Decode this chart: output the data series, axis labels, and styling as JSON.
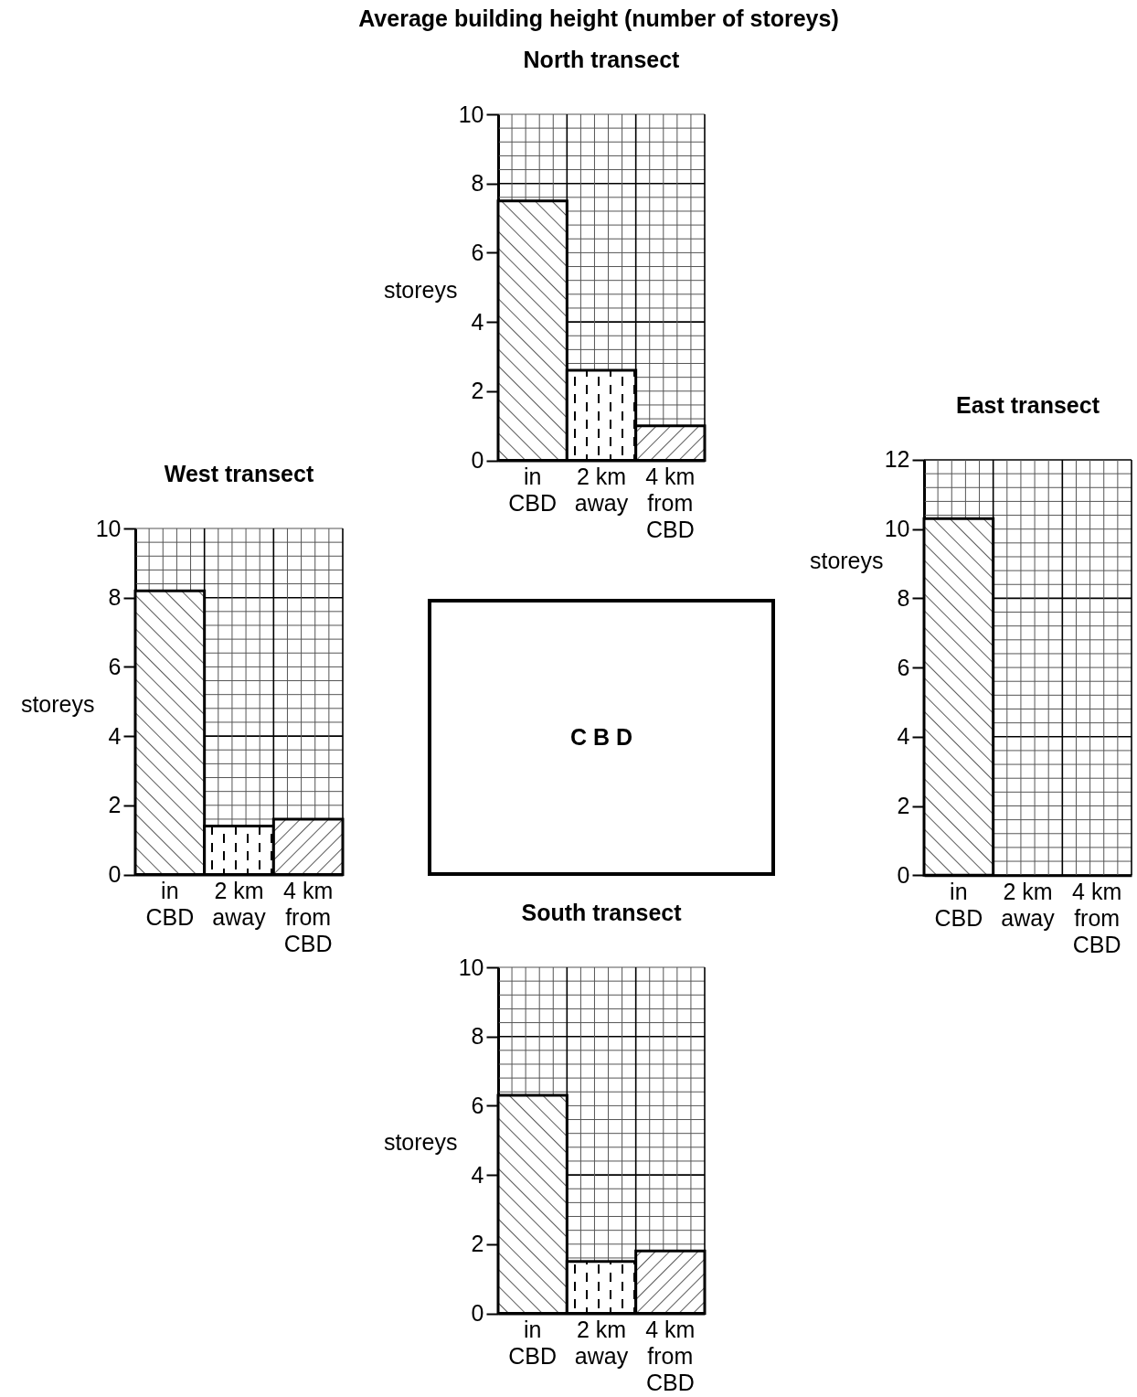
{
  "chart_data": [
    {
      "type": "other",
      "title": "Average building height (number of storeys)",
      "annotations": [
        "C B D"
      ]
    },
    {
      "type": "bar",
      "title": "North transect",
      "ylabel": "storeys",
      "categories": [
        "in CBD",
        "2 km away",
        "4 km from CBD"
      ],
      "values": [
        7.5,
        2.6,
        1.0
      ],
      "colors": [
        "#000000",
        "#000000",
        "#000000"
      ],
      "ylim": [
        0,
        10
      ],
      "yticks": [
        0,
        2,
        4,
        6,
        8,
        10
      ],
      "grid": true
    },
    {
      "type": "bar",
      "title": "West transect",
      "ylabel": "storeys",
      "categories": [
        "in CBD",
        "2 km away",
        "4 km from CBD"
      ],
      "values": [
        8.2,
        1.4,
        1.6
      ],
      "colors": [
        "#000000",
        "#000000",
        "#000000"
      ],
      "ylim": [
        0,
        10
      ],
      "yticks": [
        0,
        2,
        4,
        6,
        8,
        10
      ],
      "grid": true
    },
    {
      "type": "bar",
      "title": "East transect",
      "ylabel": "storeys",
      "categories": [
        "in CBD",
        "2 km away",
        "4 km from CBD"
      ],
      "values": [
        10.3,
        null,
        null
      ],
      "colors": [
        "#000000",
        "#000000",
        "#000000"
      ],
      "ylim": [
        0,
        12
      ],
      "yticks": [
        0,
        2,
        4,
        6,
        8,
        10,
        12
      ],
      "grid": true
    },
    {
      "type": "bar",
      "title": "South transect",
      "ylabel": "storeys",
      "categories": [
        "in CBD",
        "2 km away",
        "4 km from CBD"
      ],
      "values": [
        6.3,
        1.5,
        1.8
      ],
      "colors": [
        "#000000",
        "#000000",
        "#000000"
      ],
      "ylim": [
        0,
        10
      ],
      "yticks": [
        0,
        2,
        4,
        6,
        8,
        10
      ],
      "grid": true
    }
  ]
}
